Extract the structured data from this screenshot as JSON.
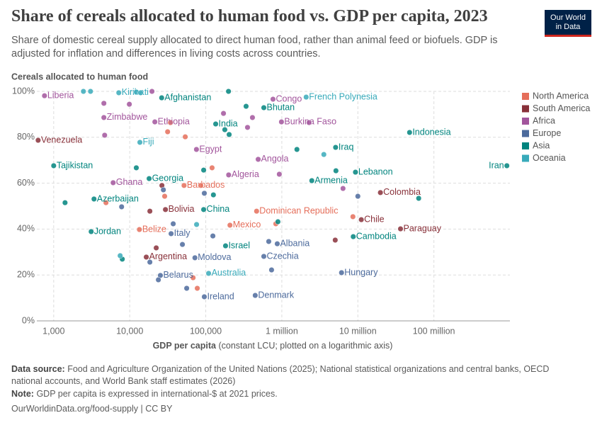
{
  "chart_data": {
    "type": "scatter",
    "title": "Share of cereals allocated to human food vs. GDP per capita, 2023",
    "subtitle": "Share of domestic cereal supply allocated to direct human food, rather than animal feed or biofuels. GDP is adjusted for inflation and differences in living costs across countries.",
    "logo": [
      "Our World",
      "in Data"
    ],
    "y_label": "Cereals allocated to human food",
    "x_label": "GDP per capita",
    "x_label_note": "(constant LCU; plotted on a logarithmic axis)",
    "source_label": "Data source:",
    "source": "Food and Agriculture Organization of the United Nations (2025); National statistical organizations and central banks, OECD national accounts, and World Bank staff estimates (2026)",
    "note_label": "Note:",
    "note": "GDP per capita is expressed in international-$ at 2021 prices.",
    "footer": "OurWorldinData.org/food-supply | CC BY",
    "xscale": "log",
    "grid": true,
    "legend": "right",
    "xlim": [
      600,
      1000000000
    ],
    "xticks": [
      {
        "value": 1000,
        "label": "1,000"
      },
      {
        "value": 10000,
        "label": "10,000"
      },
      {
        "value": 100000,
        "label": "100,000"
      },
      {
        "value": 1000000,
        "label": "1 million"
      },
      {
        "value": 10000000,
        "label": "10 million"
      },
      {
        "value": 100000000,
        "label": "100 million"
      }
    ],
    "ylim": [
      0,
      100
    ],
    "yticks": [
      {
        "value": 0,
        "label": "0%"
      },
      {
        "value": 20,
        "label": "20%"
      },
      {
        "value": 40,
        "label": "40%"
      },
      {
        "value": 60,
        "label": "60%"
      },
      {
        "value": 80,
        "label": "80%"
      },
      {
        "value": 100,
        "label": "100%"
      }
    ],
    "series": [
      {
        "name": "North America",
        "color": "#e56e5a",
        "x": [
          51800,
          466000,
          208000,
          13400,
          28800,
          4870,
          121000,
          86100,
          834000,
          8610000,
          68100,
          77300,
          34300,
          31500,
          53700
        ],
        "y": [
          59.0,
          47.8,
          41.7,
          39.8,
          54.3,
          51.5,
          66.7,
          59.0,
          42.3,
          45.4,
          18.8,
          14.2,
          86.4,
          82.4,
          80.2
        ],
        "labels": [
          "Barbados",
          "Dominican Republic",
          "Mexico",
          "Belize",
          null,
          null,
          null,
          null,
          null,
          null,
          null,
          null,
          null,
          null,
          null
        ]
      },
      {
        "name": "South America",
        "color": "#883039",
        "x": [
          624,
          19800000,
          29500,
          11100000,
          36400000,
          16500,
          18400,
          5040000,
          22300,
          26500
        ],
        "y": [
          78.7,
          55.9,
          48.5,
          44.1,
          40.1,
          27.8,
          47.8,
          35.2,
          31.8,
          59.0
        ],
        "labels": [
          "Venezuela",
          "Colombia",
          "Bolivia",
          "Chile",
          "Paraguay",
          "Argentina",
          null,
          null,
          null,
          null
        ]
      },
      {
        "name": "Africa",
        "color": "#a2559c",
        "x": [
          757,
          766000,
          4570,
          21400,
          989000,
          75400,
          489000,
          200000,
          6050,
          4570,
          9880,
          19600,
          171000,
          354000,
          411000,
          2280000,
          6380000,
          927000,
          4680
        ],
        "y": [
          98.1,
          96.6,
          88.6,
          86.7,
          86.7,
          74.7,
          70.4,
          63.6,
          60.2,
          94.8,
          94.4,
          100,
          90.4,
          84.3,
          88.6,
          86.4,
          57.7,
          63.9,
          80.9
        ],
        "labels": [
          "Liberia",
          "Congo",
          "Zimbabwe",
          "Ethiopia",
          "Burkina Faso",
          "Egypt",
          "Angola",
          "Algeria",
          "Ghana",
          null,
          null,
          null,
          null,
          null,
          null,
          null,
          null,
          null,
          null
        ]
      },
      {
        "name": "Europe",
        "color": "#4c6a9c",
        "x": [
          35000,
          871000,
          72000,
          580000,
          6100000,
          25300,
          95700,
          447000,
          7820,
          27700,
          95700,
          37300,
          124000,
          673000,
          733000,
          23800,
          56100,
          49300,
          10000000,
          18400
        ],
        "y": [
          38.0,
          33.6,
          27.5,
          28.1,
          21.0,
          19.8,
          10.5,
          11.1,
          49.7,
          57.1,
          55.6,
          42.3,
          37.0,
          34.6,
          22.2,
          17.9,
          14.2,
          33.3,
          54.3,
          25.6
        ],
        "labels": [
          "Italy",
          "Albania",
          "Moldova",
          "Czechia",
          "Hungary",
          "Belarus",
          "Ireland",
          "Denmark",
          null,
          null,
          null,
          null,
          null,
          null,
          null,
          null,
          null,
          null,
          null,
          null
        ]
      },
      {
        "name": "Asia",
        "color": "#00847e",
        "x": [
          26300,
          580000,
          135000,
          47900000,
          5100000,
          911000000,
          1000,
          9300000,
          2480000,
          18000,
          3390,
          93800,
          3110,
          8700000,
          182000,
          199000,
          339000,
          178000,
          203000,
          1580000,
          5150000,
          12200,
          93800,
          1410,
          126000,
          889000,
          63100000,
          7980
        ],
        "y": [
          97.2,
          92.9,
          85.8,
          82.1,
          75.6,
          67.6,
          67.6,
          64.8,
          61.1,
          62.0,
          53.1,
          48.5,
          38.9,
          36.7,
          32.7,
          100,
          93.5,
          83.3,
          81.2,
          74.7,
          65.4,
          66.7,
          65.7,
          51.5,
          54.9,
          43.2,
          53.4,
          26.9
        ],
        "labels": [
          "Afghanistan",
          "Bhutan",
          "India",
          "Indonesia",
          "Iraq",
          "Iran",
          "Tajikistan",
          "Lebanon",
          "Armenia",
          "Georgia",
          "Azerbaijan",
          "China",
          "Jordan",
          "Cambodia",
          "Israel",
          null,
          null,
          null,
          null,
          null,
          null,
          null,
          null,
          null,
          null,
          null,
          null,
          null
        ]
      },
      {
        "name": "Oceania",
        "color": "#38aaba",
        "x": [
          7180,
          2090000,
          13600,
          109000,
          2460,
          3050,
          12200,
          13900,
          3570000,
          75700,
          7480
        ],
        "y": [
          99.4,
          97.5,
          77.8,
          20.7,
          100,
          100,
          99.7,
          99.4,
          72.5,
          42.0,
          28.4
        ],
        "labels": [
          "Kiribati",
          "French Polynesia",
          "Fiji",
          "Australia",
          null,
          null,
          null,
          null,
          null,
          null,
          null
        ]
      }
    ]
  }
}
